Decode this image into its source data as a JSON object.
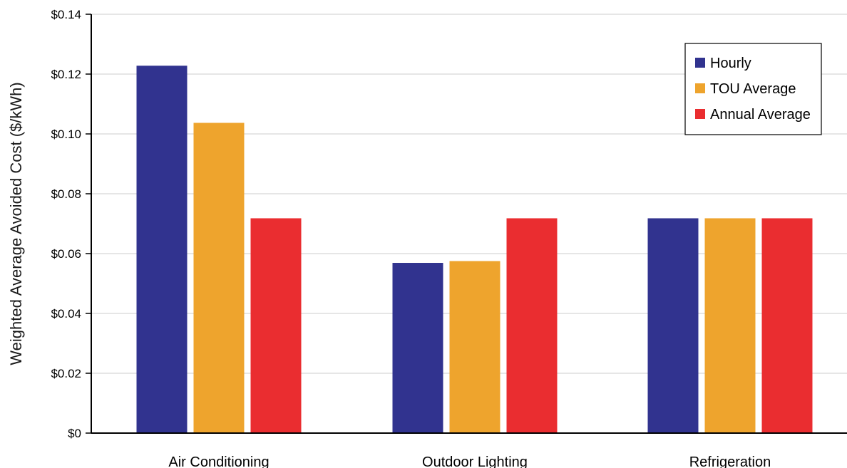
{
  "chart_data": {
    "type": "bar",
    "title": "",
    "xlabel": "",
    "ylabel": "Weighted Average Avoided Cost ($/kWh)",
    "categories": [
      "Air Conditioning",
      "Outdoor Lighting",
      "Refrigeration"
    ],
    "series": [
      {
        "name": "Hourly",
        "color": "#31338f",
        "values": [
          0.1228,
          0.0569,
          0.0718
        ]
      },
      {
        "name": "TOU Average",
        "color": "#eea42d",
        "values": [
          0.1037,
          0.0575,
          0.0718
        ]
      },
      {
        "name": "Annual Average",
        "color": "#ea2d30",
        "values": [
          0.0718,
          0.0718,
          0.0718
        ]
      }
    ],
    "ylim": [
      0,
      0.14
    ],
    "yticks": [
      {
        "value": 0,
        "label": "$0"
      },
      {
        "value": 0.02,
        "label": "$0.02"
      },
      {
        "value": 0.04,
        "label": "$0.04"
      },
      {
        "value": 0.06,
        "label": "$0.06"
      },
      {
        "value": 0.08,
        "label": "$0.08"
      },
      {
        "value": 0.1,
        "label": "$0.10"
      },
      {
        "value": 0.12,
        "label": "$0.12"
      },
      {
        "value": 0.14,
        "label": "$0.14"
      }
    ],
    "grid": true,
    "legend_position": "top-right",
    "colors": {
      "gridline": "#cccccc",
      "axis": "#000000"
    }
  }
}
